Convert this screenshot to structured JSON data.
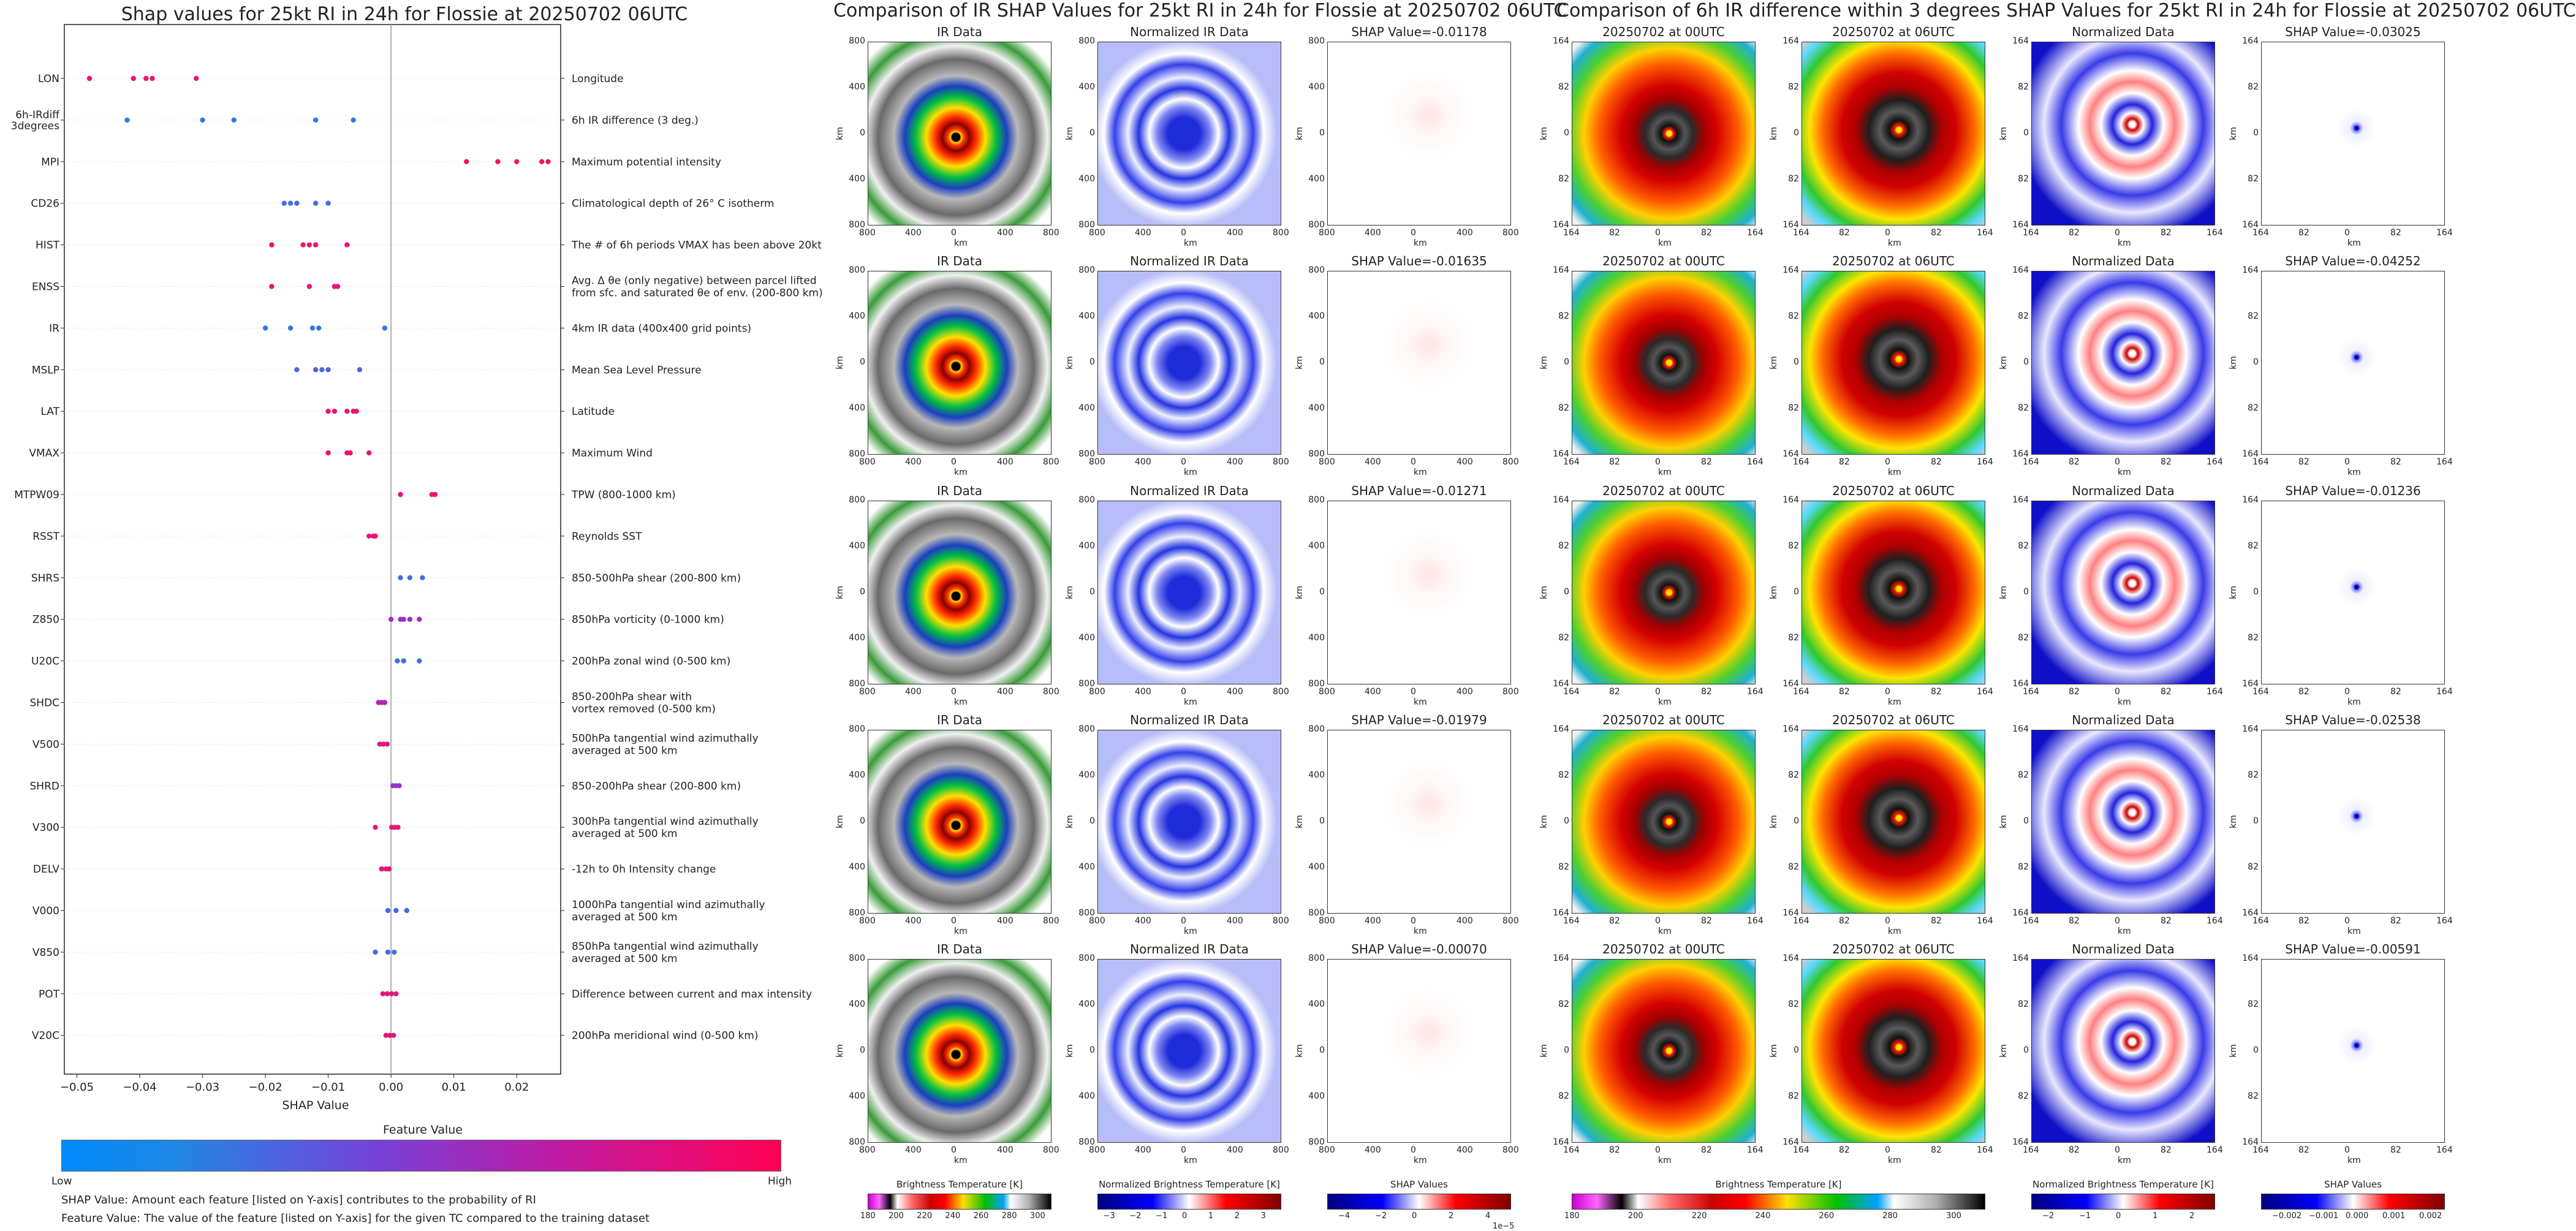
{
  "left_chart": {
    "title": "Shap values for 25kt RI in 24h for Flossie at 20250702 06UTC",
    "xlabel": "SHAP Value",
    "legend_title": "Feature Value",
    "legend_low": "Low",
    "legend_high": "High",
    "footnote_1": "SHAP Value: Amount each feature [listed on Y-axis] contributes to the probability of RI",
    "footnote_2": "Feature Value: The value of the feature [listed on Y-axis] for the given TC compared to the training dataset",
    "colors": {
      "low": "#1e88e5",
      "mid": "#9b2fc9",
      "high": "#ff0d57"
    }
  },
  "chart_data": [
    {
      "type": "scatter",
      "title": "Shap values for 25kt RI in 24h for Flossie at 20250702 06UTC",
      "xlabel": "SHAP Value",
      "xlim": [
        -0.052,
        0.027
      ],
      "xticks": [
        "−0.05",
        "−0.04",
        "−0.03",
        "−0.02",
        "−0.01",
        "0.00",
        "0.01",
        "0.02"
      ],
      "xtick_values": [
        -0.05,
        -0.04,
        -0.03,
        -0.02,
        -0.01,
        0.0,
        0.01,
        0.02
      ],
      "grid": false,
      "features": [
        {
          "code": "LON",
          "desc": [
            "Longitude"
          ],
          "points": [
            [
              -0.048,
              0.9
            ],
            [
              -0.041,
              0.9
            ],
            [
              -0.039,
              0.9
            ],
            [
              -0.038,
              0.9
            ],
            [
              -0.031,
              0.9
            ]
          ]
        },
        {
          "code": [
            "6h-IRdiff",
            "3degrees"
          ],
          "desc": [
            "6h IR difference (3 deg.)"
          ],
          "points": [
            [
              -0.042,
              0.1
            ],
            [
              -0.03,
              0.1
            ],
            [
              -0.025,
              0.1
            ],
            [
              -0.012,
              0.1
            ],
            [
              -0.006,
              0.1
            ]
          ]
        },
        {
          "code": "MPI",
          "desc": [
            "Maximum potential intensity"
          ],
          "points": [
            [
              0.012,
              0.95
            ],
            [
              0.017,
              0.95
            ],
            [
              0.02,
              0.95
            ],
            [
              0.024,
              0.95
            ],
            [
              0.025,
              0.95
            ]
          ]
        },
        {
          "code": "CD26",
          "desc": [
            "Climatological depth of 26° C isotherm"
          ],
          "points": [
            [
              -0.017,
              0.15
            ],
            [
              -0.016,
              0.15
            ],
            [
              -0.015,
              0.15
            ],
            [
              -0.012,
              0.15
            ],
            [
              -0.01,
              0.15
            ]
          ]
        },
        {
          "code": "HIST",
          "desc": [
            "The # of 6h periods VMAX has been above 20kt"
          ],
          "points": [
            [
              -0.019,
              0.9
            ],
            [
              -0.014,
              0.9
            ],
            [
              -0.013,
              0.9
            ],
            [
              -0.012,
              0.9
            ],
            [
              -0.007,
              0.9
            ]
          ]
        },
        {
          "code": "ENSS",
          "desc": [
            "Avg. Δ θe (only negative) between parcel lifted",
            "from sfc. and saturated θe of env. (200-800 km)"
          ],
          "points": [
            [
              -0.019,
              0.9
            ],
            [
              -0.013,
              0.9
            ],
            [
              -0.009,
              0.9
            ],
            [
              -0.0085,
              0.9
            ]
          ]
        },
        {
          "code": "IR",
          "desc": [
            "4km IR data (400x400 grid points)"
          ],
          "points": [
            [
              -0.02,
              0.1
            ],
            [
              -0.016,
              0.1
            ],
            [
              -0.0125,
              0.1
            ],
            [
              -0.0115,
              0.1
            ],
            [
              -0.001,
              0.1
            ]
          ]
        },
        {
          "code": "MSLP",
          "desc": [
            "Mean Sea Level Pressure"
          ],
          "points": [
            [
              -0.015,
              0.2
            ],
            [
              -0.012,
              0.2
            ],
            [
              -0.011,
              0.2
            ],
            [
              -0.01,
              0.2
            ],
            [
              -0.005,
              0.2
            ]
          ]
        },
        {
          "code": "LAT",
          "desc": [
            "Latitude"
          ],
          "points": [
            [
              -0.01,
              0.9
            ],
            [
              -0.009,
              0.9
            ],
            [
              -0.007,
              0.9
            ],
            [
              -0.006,
              0.9
            ],
            [
              -0.0055,
              0.9
            ]
          ]
        },
        {
          "code": "VMAX",
          "desc": [
            "Maximum Wind"
          ],
          "points": [
            [
              -0.01,
              0.9
            ],
            [
              -0.007,
              0.9
            ],
            [
              -0.0065,
              0.9
            ],
            [
              -0.0035,
              0.9
            ]
          ]
        },
        {
          "code": "MTPW09",
          "desc": [
            "TPW (800-1000 km)"
          ],
          "points": [
            [
              0.0015,
              0.9
            ],
            [
              0.0065,
              0.9
            ],
            [
              0.007,
              0.9
            ]
          ]
        },
        {
          "code": "RSST",
          "desc": [
            "Reynolds SST"
          ],
          "points": [
            [
              -0.0035,
              0.9
            ],
            [
              -0.0028,
              0.9
            ],
            [
              -0.0025,
              0.9
            ]
          ]
        },
        {
          "code": "SHRS",
          "desc": [
            "850-500hPa shear (200-800 km)"
          ],
          "points": [
            [
              0.0015,
              0.15
            ],
            [
              0.003,
              0.15
            ],
            [
              0.005,
              0.15
            ]
          ]
        },
        {
          "code": "Z850",
          "desc": [
            "850hPa vorticity (0-1000 km)"
          ],
          "points": [
            [
              0.0,
              0.55
            ],
            [
              0.0015,
              0.55
            ],
            [
              0.002,
              0.55
            ],
            [
              0.003,
              0.55
            ],
            [
              0.0045,
              0.55
            ]
          ]
        },
        {
          "code": "U20C",
          "desc": [
            "200hPa zonal wind (0-500 km)"
          ],
          "points": [
            [
              0.001,
              0.1
            ],
            [
              0.002,
              0.1
            ],
            [
              0.0045,
              0.1
            ]
          ]
        },
        {
          "code": "SHDC",
          "desc": [
            "850-200hPa shear with",
            "vortex removed (0-500 km)"
          ],
          "points": [
            [
              -0.002,
              0.6
            ],
            [
              -0.0015,
              0.6
            ],
            [
              -0.001,
              0.6
            ]
          ]
        },
        {
          "code": "V500",
          "desc": [
            "500hPa tangential wind azimuthally",
            "averaged at 500 km"
          ],
          "points": [
            [
              -0.0018,
              0.8
            ],
            [
              -0.0012,
              0.8
            ],
            [
              -0.0006,
              0.8
            ]
          ]
        },
        {
          "code": "SHRD",
          "desc": [
            "850-200hPa shear (200-800 km)"
          ],
          "points": [
            [
              0.0003,
              0.5
            ],
            [
              0.0008,
              0.5
            ],
            [
              0.0013,
              0.5
            ]
          ]
        },
        {
          "code": "V300",
          "desc": [
            "300hPa tangential wind azimuthally",
            "averaged at 500 km"
          ],
          "points": [
            [
              -0.0025,
              0.85
            ],
            [
              0.0001,
              0.85
            ],
            [
              0.0006,
              0.85
            ],
            [
              0.0011,
              0.85
            ]
          ]
        },
        {
          "code": "DELV",
          "desc": [
            "-12h to 0h Intensity change"
          ],
          "points": [
            [
              -0.0015,
              0.85
            ],
            [
              -0.0008,
              0.85
            ],
            [
              -0.0003,
              0.85
            ]
          ]
        },
        {
          "code": "V000",
          "desc": [
            "1000hPa tangential wind azimuthally",
            "averaged at 500 km"
          ],
          "points": [
            [
              -0.0005,
              0.15
            ],
            [
              0.0008,
              0.15
            ],
            [
              0.0025,
              0.15
            ]
          ]
        },
        {
          "code": "V850",
          "desc": [
            "850hPa tangential wind azimuthally",
            "averaged at 500 km"
          ],
          "points": [
            [
              -0.0025,
              0.15
            ],
            [
              -0.0005,
              0.15
            ],
            [
              0.0005,
              0.15
            ]
          ]
        },
        {
          "code": "POT",
          "desc": [
            "Difference between current and max intensity"
          ],
          "points": [
            [
              -0.0013,
              0.85
            ],
            [
              -0.0006,
              0.85
            ],
            [
              0.0001,
              0.85
            ],
            [
              0.0008,
              0.85
            ]
          ]
        },
        {
          "code": "V20C",
          "desc": [
            "200hPa meridional wind (0-500 km)"
          ],
          "points": [
            [
              -0.0008,
              0.85
            ],
            [
              -0.0002,
              0.85
            ],
            [
              0.0004,
              0.85
            ]
          ]
        }
      ]
    },
    {
      "type": "heatmap",
      "title": "Comparison of IR SHAP Values for 25kt RI in 24h for Flossie at 20250702 06UTC",
      "column_titles": [
        "IR Data",
        "Normalized IR Data"
      ],
      "shap_titles": [
        "SHAP Value=-0.01178",
        "SHAP Value=-0.01635",
        "SHAP Value=-0.01271",
        "SHAP Value=-0.01979",
        "SHAP Value=-0.00070"
      ],
      "xlabel": "km",
      "ylabel": "km",
      "xticks": [
        "800",
        "400",
        "0",
        "400",
        "800"
      ],
      "yticks": [
        "800",
        "400",
        "0",
        "400",
        "800"
      ],
      "colorbars": [
        {
          "label": "Brightness Temperature [K]",
          "ticks": [
            "180",
            "200",
            "220",
            "240",
            "260",
            "280",
            "300"
          ],
          "range": [
            180,
            310
          ]
        },
        {
          "label": "Normalized Brightness Temperature [K]",
          "ticks": [
            "−3",
            "−2",
            "−1",
            "0",
            "1",
            "2",
            "3"
          ],
          "range": [
            -3.5,
            3.5
          ]
        },
        {
          "label": "SHAP Values",
          "ticks": [
            "−4",
            "−2",
            "0",
            "2",
            "4"
          ],
          "range": [
            -5,
            5
          ],
          "offset": "1e−5"
        }
      ]
    },
    {
      "type": "heatmap",
      "title": "Comparison of 6h IR difference within 3 degrees SHAP Values for 25kt RI in 24h for Flossie at 20250702 06UTC",
      "column_titles": [
        "20250702 at 00UTC",
        "20250702 at 06UTC",
        "Normalized Data"
      ],
      "shap_titles": [
        "SHAP Value=-0.03025",
        "SHAP Value=-0.04252",
        "SHAP Value=-0.01236",
        "SHAP Value=-0.02538",
        "SHAP Value=-0.00591"
      ],
      "xlabel": "km",
      "ylabel": "km",
      "xticks": [
        "164",
        "82",
        "0",
        "82",
        "164"
      ],
      "yticks": [
        "164",
        "82",
        "0",
        "82",
        "164"
      ],
      "colorbars": [
        {
          "label": "Brightness Temperature [K]",
          "ticks": [
            "180",
            "200",
            "220",
            "240",
            "260",
            "280",
            "300"
          ],
          "range": [
            180,
            310
          ]
        },
        {
          "label": "Normalized Brightness Temperature [K]",
          "ticks": [
            "−2",
            "−1",
            "0",
            "1",
            "2"
          ],
          "range": [
            -2.5,
            2.5
          ]
        },
        {
          "label": "SHAP Values",
          "ticks": [
            "−0.002",
            "−0.001",
            "0.000",
            "0.001",
            "0.002"
          ],
          "range": [
            -0.0025,
            0.0025
          ]
        }
      ]
    }
  ]
}
